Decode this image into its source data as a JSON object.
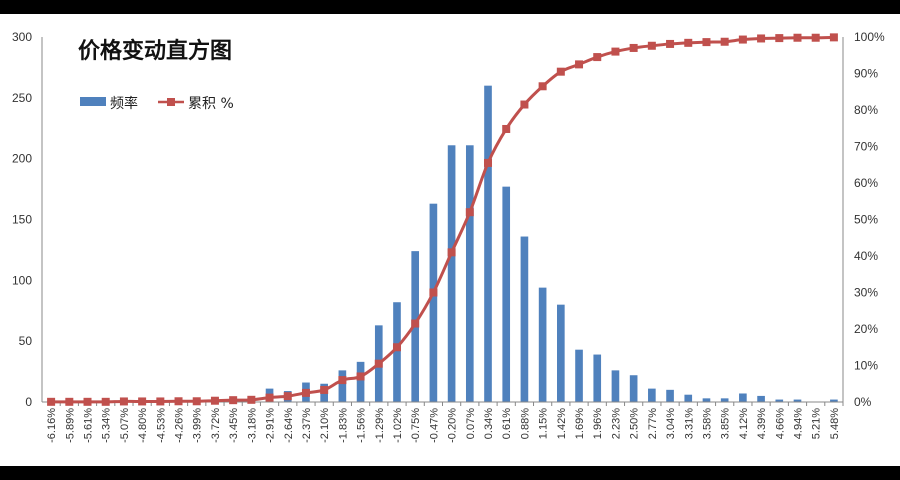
{
  "chart_data": {
    "type": "bar+line",
    "title": "价格变动直方图",
    "categories": [
      "-6.16%",
      "-5.89%",
      "-5.61%",
      "-5.34%",
      "-5.07%",
      "-4.80%",
      "-4.53%",
      "-4.26%",
      "-3.99%",
      "-3.72%",
      "-3.45%",
      "-3.18%",
      "-2.91%",
      "-2.64%",
      "-2.37%",
      "-2.10%",
      "-1.83%",
      "-1.56%",
      "-1.29%",
      "-1.02%",
      "-0.75%",
      "-0.47%",
      "-0.20%",
      "0.07%",
      "0.34%",
      "0.61%",
      "0.88%",
      "1.15%",
      "1.42%",
      "1.69%",
      "1.96%",
      "2.23%",
      "2.50%",
      "2.77%",
      "3.04%",
      "3.31%",
      "3.58%",
      "3.85%",
      "4.12%",
      "4.39%",
      "4.66%",
      "4.94%",
      "5.21%",
      "5.48%"
    ],
    "series": [
      {
        "name": "频率",
        "axis": "left",
        "kind": "bar",
        "color": "#4F81BD",
        "values": [
          1,
          0,
          0,
          0,
          2,
          0,
          0,
          1,
          0,
          3,
          2,
          3,
          11,
          9,
          16,
          15,
          26,
          33,
          63,
          82,
          124,
          163,
          211,
          211,
          260,
          177,
          136,
          94,
          80,
          43,
          39,
          26,
          22,
          11,
          10,
          6,
          3,
          3,
          7,
          5,
          2,
          2,
          0,
          2
        ]
      },
      {
        "name": "累积 %",
        "axis": "right",
        "kind": "line",
        "color": "#C0504D",
        "values": [
          0.05,
          0.05,
          0.05,
          0.05,
          0.15,
          0.15,
          0.15,
          0.2,
          0.2,
          0.35,
          0.5,
          0.6,
          1.2,
          1.6,
          2.5,
          3.3,
          6.0,
          7.0,
          10.5,
          15.0,
          21.5,
          30.0,
          41.0,
          52.0,
          65.5,
          74.8,
          81.5,
          86.5,
          90.5,
          92.5,
          94.5,
          96.0,
          97.0,
          97.6,
          98.1,
          98.4,
          98.6,
          98.7,
          99.3,
          99.6,
          99.7,
          99.8,
          99.8,
          99.9
        ]
      }
    ],
    "y_left": {
      "min": 0,
      "max": 300,
      "ticks": [
        "0",
        "50",
        "100",
        "150",
        "200",
        "250",
        "300"
      ]
    },
    "y_right": {
      "min": 0,
      "max": 100,
      "ticks": [
        "0%",
        "10%",
        "20%",
        "30%",
        "40%",
        "50%",
        "60%",
        "70%",
        "80%",
        "90%",
        "100%"
      ]
    },
    "legend": {
      "position": "top-left",
      "items": [
        "频率",
        "累积 %"
      ]
    },
    "grid": false
  }
}
